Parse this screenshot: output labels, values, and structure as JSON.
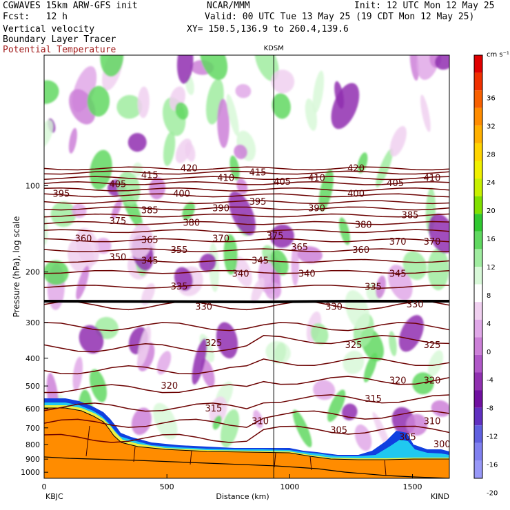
{
  "header": {
    "title": "CGWAVES 15km ARW-GFS init",
    "org": "NCAR/MMM",
    "init": "Init: 12 UTC Mon 12 May 25",
    "fcst": "Fcst:   12 h",
    "valid": "Valid: 00 UTC Tue 13 May 25 (19 CDT Mon 12 May 25)",
    "field1": "Vertical velocity",
    "field2": "Boundary Layer Tracer",
    "field3": "Potential Temperature",
    "xy": "XY= 150.5,136.9 to 260.4,139.6"
  },
  "colors": {
    "theta_contour": "#6b0000",
    "terrain": "#ff8c00",
    "tropopause_line": "#000000"
  },
  "chart_data": {
    "type": "heatmap",
    "title": "",
    "xlabel": "Distance (km)",
    "ylabel": "Pressure (hPa), log scale",
    "x_ticks": [
      "0",
      "500",
      "1000",
      "1500"
    ],
    "x_tick_values": [
      0,
      500,
      1000,
      1500
    ],
    "xlim": [
      0,
      1650
    ],
    "y_ticks": [
      "100",
      "200",
      "300",
      "400",
      "500",
      "600",
      "700",
      "800",
      "900",
      "1000"
    ],
    "y_tick_values": [
      100,
      200,
      300,
      400,
      500,
      600,
      700,
      800,
      900,
      1000
    ],
    "ylim": [
      1050,
      35
    ],
    "y_scale": "log",
    "station_left": "KBJC",
    "station_right": "KIND",
    "station_mid": "KDSM",
    "station_mid_km": 935,
    "colorbar": {
      "unit": "cm s⁻¹",
      "labels": [
        "36",
        "32",
        "28",
        "24",
        "20",
        "16",
        "12",
        "8",
        "4",
        "0",
        "-4",
        "-8",
        "-12",
        "-16",
        "-20"
      ],
      "colors": [
        "#e00000",
        "#f03000",
        "#f86000",
        "#ff8c00",
        "#ffb000",
        "#ffd400",
        "#f0f000",
        "#c8f000",
        "#80e000",
        "#30c830",
        "#60d860",
        "#a0eca0",
        "#d8f8d8",
        "#ffffff",
        "#f0d0f0",
        "#e0a8e8",
        "#cc80d8",
        "#b058c8",
        "#9030b0",
        "#7010a0",
        "#6030c0",
        "#6060e0",
        "#8080f0",
        "#9898f8"
      ]
    },
    "theta_contours": [
      {
        "label": "300",
        "km": 1620,
        "p": 800
      },
      {
        "label": "305",
        "km": 1200,
        "p": 715
      },
      {
        "label": "305",
        "km": 1480,
        "p": 755
      },
      {
        "label": "310",
        "km": 880,
        "p": 665
      },
      {
        "label": "310",
        "km": 1580,
        "p": 665
      },
      {
        "label": "315",
        "km": 690,
        "p": 600
      },
      {
        "label": "315",
        "km": 1340,
        "p": 555
      },
      {
        "label": "320",
        "km": 510,
        "p": 500
      },
      {
        "label": "320",
        "km": 1440,
        "p": 480
      },
      {
        "label": "320",
        "km": 1580,
        "p": 480
      },
      {
        "label": "325",
        "km": 690,
        "p": 355
      },
      {
        "label": "325",
        "km": 1260,
        "p": 360
      },
      {
        "label": "325",
        "km": 1580,
        "p": 360
      },
      {
        "label": "330",
        "km": 650,
        "p": 265
      },
      {
        "label": "330",
        "km": 1180,
        "p": 265
      },
      {
        "label": "330",
        "km": 1510,
        "p": 260
      },
      {
        "label": "335",
        "km": 550,
        "p": 225
      },
      {
        "label": "335",
        "km": 1340,
        "p": 226
      },
      {
        "label": "340",
        "km": 800,
        "p": 203
      },
      {
        "label": "340",
        "km": 1070,
        "p": 203
      },
      {
        "label": "345",
        "km": 430,
        "p": 183
      },
      {
        "label": "345",
        "km": 880,
        "p": 183
      },
      {
        "label": "345",
        "km": 1440,
        "p": 203
      },
      {
        "label": "350",
        "km": 300,
        "p": 178
      },
      {
        "label": "355",
        "km": 550,
        "p": 168
      },
      {
        "label": "360",
        "km": 160,
        "p": 153
      },
      {
        "label": "360",
        "km": 1290,
        "p": 168
      },
      {
        "label": "365",
        "km": 430,
        "p": 155
      },
      {
        "label": "365",
        "km": 1040,
        "p": 164
      },
      {
        "label": "370",
        "km": 720,
        "p": 153
      },
      {
        "label": "370",
        "km": 1440,
        "p": 157
      },
      {
        "label": "370",
        "km": 1580,
        "p": 157
      },
      {
        "label": "375",
        "km": 300,
        "p": 133
      },
      {
        "label": "375",
        "km": 940,
        "p": 150
      },
      {
        "label": "380",
        "km": 600,
        "p": 135
      },
      {
        "label": "380",
        "km": 1300,
        "p": 137
      },
      {
        "label": "385",
        "km": 430,
        "p": 122
      },
      {
        "label": "385",
        "km": 1490,
        "p": 127
      },
      {
        "label": "390",
        "km": 720,
        "p": 120
      },
      {
        "label": "390",
        "km": 1110,
        "p": 120
      },
      {
        "label": "395",
        "km": 70,
        "p": 107
      },
      {
        "label": "395",
        "km": 870,
        "p": 114
      },
      {
        "label": "400",
        "km": 560,
        "p": 107
      },
      {
        "label": "400",
        "km": 1270,
        "p": 107
      },
      {
        "label": "405",
        "km": 300,
        "p": 99
      },
      {
        "label": "405",
        "km": 970,
        "p": 97
      },
      {
        "label": "405",
        "km": 1430,
        "p": 98
      },
      {
        "label": "410",
        "km": 740,
        "p": 94
      },
      {
        "label": "410",
        "km": 1110,
        "p": 94
      },
      {
        "label": "410",
        "km": 1580,
        "p": 94
      },
      {
        "label": "415",
        "km": 430,
        "p": 92
      },
      {
        "label": "415",
        "km": 870,
        "p": 90
      },
      {
        "label": "420",
        "km": 590,
        "p": 87
      },
      {
        "label": "420",
        "km": 1270,
        "p": 87
      }
    ]
  }
}
